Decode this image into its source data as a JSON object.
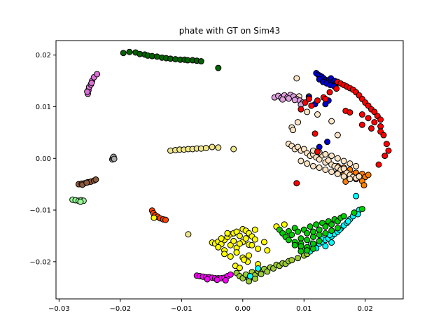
{
  "chart_data": {
    "type": "scatter",
    "title": "phate with GT on Sim43",
    "xlabel": "",
    "ylabel": "",
    "xlim": [
      -0.0305,
      0.0262
    ],
    "ylim": [
      -0.0272,
      0.0228
    ],
    "xticks": [
      -0.03,
      -0.02,
      -0.01,
      0.0,
      0.01,
      0.02
    ],
    "xtick_labels": [
      "−0.03",
      "−0.02",
      "−0.01",
      "0.00",
      "0.01",
      "0.02"
    ],
    "yticks": [
      -0.02,
      -0.01,
      0.0,
      0.01,
      0.02
    ],
    "ytick_labels": [
      "−0.02",
      "−0.01",
      "0.00",
      "0.01",
      "0.02"
    ],
    "grid": false,
    "legend": "none",
    "marker_edge_color": "#000000",
    "series": [
      {
        "color": "#006400",
        "x": [
          -0.0195,
          -0.0185,
          -0.0175,
          -0.0168,
          -0.016,
          -0.0155,
          -0.0148,
          -0.014,
          -0.0132,
          -0.0125,
          -0.0118,
          -0.011,
          -0.0102,
          -0.0095,
          -0.009,
          -0.0082,
          -0.0075,
          -0.0068,
          -0.004
        ],
        "y": [
          0.0204,
          0.0206,
          0.0205,
          0.0202,
          0.0201,
          0.0199,
          0.0198,
          0.0197,
          0.0195,
          0.0194,
          0.0193,
          0.0192,
          0.0191,
          0.0191,
          0.019,
          0.019,
          0.0189,
          0.0188,
          0.0175
        ]
      },
      {
        "color": "#DA70D6",
        "x": [
          -0.0253,
          -0.0252,
          -0.0251,
          -0.0248,
          -0.0246,
          -0.0243,
          -0.0238,
          -0.0254,
          -0.0247
        ],
        "y": [
          0.0125,
          0.0132,
          0.0138,
          0.0143,
          0.015,
          0.0157,
          0.0163,
          0.0129,
          0.0146
        ]
      },
      {
        "color": "#A9A9A9",
        "x": [
          -0.0213,
          -0.0212,
          -0.0211,
          -0.021
        ],
        "y": [
          -0.0002,
          0.0001,
          0.0003,
          -0.0001
        ]
      },
      {
        "color": "#8B5A3C",
        "x": [
          -0.0268,
          -0.0263,
          -0.0258,
          -0.0253,
          -0.0248,
          -0.0243,
          -0.024,
          -0.0262,
          -0.0255
        ],
        "y": [
          -0.005,
          -0.0049,
          -0.0048,
          -0.0046,
          -0.0045,
          -0.0043,
          -0.0041,
          -0.0051,
          -0.0047
        ]
      },
      {
        "color": "#98FB98",
        "x": [
          -0.0278,
          -0.0273,
          -0.0268,
          -0.0264,
          -0.026,
          -0.0265
        ],
        "y": [
          -0.008,
          -0.0081,
          -0.0082,
          -0.0081,
          -0.0082,
          -0.0084
        ]
      },
      {
        "color": "#FF4500",
        "x": [
          -0.0148,
          -0.0146,
          -0.0143,
          -0.0139,
          -0.0135,
          -0.013,
          -0.0126
        ],
        "y": [
          -0.0101,
          -0.0106,
          -0.011,
          -0.0113,
          -0.0116,
          -0.0118,
          -0.0119
        ]
      },
      {
        "color": "#F0E68C",
        "x": [
          -0.0118,
          -0.011,
          -0.0103,
          -0.0096,
          -0.0089,
          -0.0082,
          -0.0075,
          -0.0068,
          -0.006,
          -0.005,
          -0.004,
          -0.0015,
          -0.0089
        ],
        "y": [
          0.0015,
          0.0016,
          0.0017,
          0.0017,
          0.0018,
          0.0018,
          0.0019,
          0.0019,
          0.002,
          0.0022,
          0.0021,
          0.0018,
          -0.0147
        ]
      },
      {
        "color": "#FFFF00",
        "x": [
          -0.005,
          -0.0045,
          -0.004,
          -0.0035,
          -0.003,
          -0.0025,
          -0.002,
          -0.0015,
          -0.001,
          -0.0005,
          0.0,
          0.0005,
          0.001,
          0.0015,
          0.002,
          -0.004,
          -0.003,
          -0.002,
          -0.001,
          0.0,
          0.001,
          0.002,
          -0.0035,
          -0.0025,
          -0.0015,
          -0.0005,
          0.0005,
          0.0015,
          0.0025,
          0.0035,
          -0.003,
          -0.002,
          -0.001,
          0.0,
          0.001,
          -0.0145,
          0.0008,
          0.0025,
          0.0055,
          0.0068,
          -0.0012,
          0.0002,
          0.004,
          -0.0005
        ],
        "y": [
          -0.0163,
          -0.0165,
          -0.0161,
          -0.0166,
          -0.0158,
          -0.0152,
          -0.0147,
          -0.0145,
          -0.0142,
          -0.015,
          -0.0137,
          -0.014,
          -0.0145,
          -0.0151,
          -0.0138,
          -0.0172,
          -0.0178,
          -0.0168,
          -0.0173,
          -0.0162,
          -0.0167,
          -0.0157,
          -0.0155,
          -0.0145,
          -0.016,
          -0.0165,
          -0.0155,
          -0.0168,
          -0.0175,
          -0.0162,
          -0.0185,
          -0.019,
          -0.0182,
          -0.0192,
          -0.0188,
          -0.0115,
          -0.02,
          -0.0205,
          -0.0132,
          -0.0128,
          -0.0208,
          -0.0196,
          -0.0178,
          -0.0212
        ]
      },
      {
        "color": "#FF00FF",
        "x": [
          -0.0075,
          -0.007,
          -0.0065,
          -0.006,
          -0.0055,
          -0.005,
          -0.0045,
          -0.004,
          -0.0035,
          -0.003,
          -0.0025,
          -0.002,
          -0.0058,
          -0.0042,
          -0.0028
        ],
        "y": [
          -0.0227,
          -0.0228,
          -0.0229,
          -0.023,
          -0.023,
          -0.0231,
          -0.0232,
          -0.0232,
          -0.0232,
          -0.0231,
          -0.0228,
          -0.0225,
          -0.0234,
          -0.0235,
          -0.0236
        ]
      },
      {
        "color": "#9ACD32",
        "x": [
          -0.001,
          -0.0005,
          0.0,
          0.0005,
          0.001,
          0.0015,
          0.002,
          0.0025,
          0.003,
          0.0035,
          0.004,
          0.0045,
          0.005,
          0.0055,
          0.006,
          0.0065,
          0.007,
          0.0075,
          0.008,
          0.009,
          0.01,
          0.0105,
          0.001,
          0.002
        ],
        "y": [
          -0.0222,
          -0.0228,
          -0.0232,
          -0.0225,
          -0.0235,
          -0.022,
          -0.0226,
          -0.0218,
          -0.0224,
          -0.0214,
          -0.0219,
          -0.0211,
          -0.0213,
          -0.0206,
          -0.0208,
          -0.0203,
          -0.0204,
          -0.0199,
          -0.0197,
          -0.0193,
          -0.0188,
          -0.0185,
          -0.0238,
          -0.0233
        ]
      },
      {
        "color": "#00FFFF",
        "x": [
          0.0095,
          0.01,
          0.0105,
          0.011,
          0.0115,
          0.012,
          0.0125,
          0.013,
          0.0135,
          0.014,
          0.0145,
          0.015,
          0.0155,
          0.016,
          0.0165,
          0.017,
          0.0175,
          0.018,
          0.0185,
          0.019,
          0.0112,
          0.0128,
          0.0142,
          0.0158,
          0.0172,
          0.0188,
          0.0145,
          0.0135,
          0.0025,
          0.0012,
          0.0185
        ],
        "y": [
          -0.0172,
          -0.0178,
          -0.0175,
          -0.018,
          -0.0168,
          -0.0174,
          -0.0165,
          -0.0162,
          -0.0158,
          -0.0155,
          -0.0151,
          -0.0146,
          -0.0142,
          -0.0136,
          -0.013,
          -0.0125,
          -0.0118,
          -0.0112,
          -0.0106,
          -0.01,
          -0.0165,
          -0.0155,
          -0.0148,
          -0.0138,
          -0.0122,
          -0.0108,
          -0.0163,
          -0.017,
          -0.0213,
          -0.0228,
          -0.0073
        ]
      },
      {
        "color": "#00CC00",
        "x": [
          0.006,
          0.0065,
          0.007,
          0.0075,
          0.008,
          0.0085,
          0.009,
          0.0095,
          0.01,
          0.0105,
          0.011,
          0.0115,
          0.012,
          0.0125,
          0.013,
          0.0135,
          0.014,
          0.0145,
          0.015,
          0.0155,
          0.016,
          0.0075,
          0.0085,
          0.0095,
          0.0105,
          0.0115,
          0.0125,
          0.0135,
          0.0145,
          0.0155,
          0.0085,
          0.0095,
          0.0105,
          0.0115,
          0.0125,
          0.0095,
          0.0105,
          0.0115,
          0.0165,
          0.0182,
          0.0195
        ],
        "y": [
          -0.0138,
          -0.0145,
          -0.0152,
          -0.0141,
          -0.0148,
          -0.0135,
          -0.0142,
          -0.0155,
          -0.0138,
          -0.0145,
          -0.0132,
          -0.0142,
          -0.0128,
          -0.0138,
          -0.0125,
          -0.0132,
          -0.0122,
          -0.0128,
          -0.0118,
          -0.0122,
          -0.0115,
          -0.0158,
          -0.0162,
          -0.0165,
          -0.0158,
          -0.0152,
          -0.0148,
          -0.0145,
          -0.014,
          -0.0135,
          -0.0168,
          -0.017,
          -0.0172,
          -0.0165,
          -0.016,
          -0.018,
          -0.0178,
          -0.0175,
          -0.0112,
          -0.0105,
          -0.0098
        ]
      },
      {
        "color": "#FF7F00",
        "x": [
          0.0155,
          0.016,
          0.0165,
          0.017,
          0.0175,
          0.018,
          0.0185,
          0.019,
          0.0195,
          0.02,
          0.0205,
          0.0165,
          0.0175,
          0.0185,
          0.0195,
          0.0155,
          0.0168,
          0.0198
        ],
        "y": [
          -0.0015,
          -0.002,
          -0.0018,
          -0.0025,
          -0.0022,
          -0.003,
          -0.0028,
          -0.0034,
          -0.003,
          -0.0036,
          -0.0032,
          -0.0032,
          -0.0038,
          -0.004,
          -0.0044,
          -0.0028,
          -0.0045,
          -0.0052
        ]
      },
      {
        "color": "#FFE4C4",
        "x": [
          0.0075,
          0.008,
          0.0085,
          0.009,
          0.0095,
          0.01,
          0.0105,
          0.011,
          0.0115,
          0.012,
          0.0125,
          0.013,
          0.0135,
          0.014,
          0.0145,
          0.015,
          0.0155,
          0.016,
          0.0165,
          0.017,
          0.0175,
          0.018,
          0.0185,
          0.019,
          0.0095,
          0.0105,
          0.0115,
          0.0125,
          0.0135,
          0.0145,
          0.0155,
          0.0165,
          0.0175,
          0.0115,
          0.0125,
          0.0135,
          0.0145,
          0.0155,
          0.0165,
          0.0175,
          0.0185,
          0.008,
          0.009,
          0.0082,
          0.0105,
          0.0092,
          0.0088,
          0.0108,
          0.0122,
          0.0145,
          0.0155
        ],
        "y": [
          0.0028,
          0.0024,
          0.0018,
          0.0022,
          0.0015,
          0.0018,
          0.001,
          0.0005,
          0.0008,
          0.0002,
          -0.0002,
          0.0006,
          -0.0008,
          -0.0004,
          -0.0012,
          -0.0015,
          -0.0018,
          -0.0022,
          -0.002,
          -0.0028,
          -0.0032,
          -0.0036,
          -0.0038,
          -0.0035,
          -0.0005,
          -0.001,
          -0.0015,
          -0.0018,
          -0.0022,
          -0.0026,
          -0.003,
          -0.0035,
          -0.004,
          0.0015,
          0.0012,
          0.0008,
          0.0005,
          0.0,
          -0.0005,
          -0.001,
          -0.0015,
          0.006,
          0.007,
          0.0055,
          0.009,
          0.012,
          0.0155,
          0.012,
          0.0085,
          0.0072,
          0.0045
        ]
      },
      {
        "color": "#DDA0DD",
        "x": [
          0.0052,
          0.0058,
          0.0063,
          0.0068,
          0.0073,
          0.0078,
          0.0083,
          0.0088,
          0.0093,
          0.0098,
          0.0065,
          0.0075,
          0.0085,
          0.0095
        ],
        "y": [
          0.0118,
          0.0121,
          0.0117,
          0.0122,
          0.0118,
          0.0123,
          0.012,
          0.0115,
          0.0112,
          0.0108,
          0.0114,
          0.0116,
          0.0113,
          0.0104
        ]
      },
      {
        "color": "#0000CD",
        "x": [
          0.012,
          0.0123,
          0.0126,
          0.0129,
          0.0132,
          0.0135,
          0.0138,
          0.0141,
          0.0144,
          0.0147,
          0.015,
          0.0153,
          0.0125,
          0.0131,
          0.0137,
          0.0143,
          0.0149,
          0.0108,
          0.0118,
          0.014,
          0.0135,
          0.0138,
          0.0125
        ],
        "y": [
          0.0165,
          0.0162,
          0.016,
          0.0158,
          0.0155,
          0.0152,
          0.015,
          0.0152,
          0.0155,
          0.0148,
          0.015,
          0.0145,
          0.0153,
          0.0148,
          0.0145,
          0.0142,
          0.014,
          0.0118,
          0.0105,
          0.0112,
          0.0105,
          0.0032,
          0.0022
        ]
      },
      {
        "color": "#FF0000",
        "x": [
          0.0155,
          0.016,
          0.0165,
          0.017,
          0.0175,
          0.018,
          0.0185,
          0.019,
          0.0195,
          0.02,
          0.0205,
          0.021,
          0.0215,
          0.022,
          0.0225,
          0.0195,
          0.0205,
          0.0215,
          0.0225,
          0.0195,
          0.021,
          0.0225,
          0.023,
          0.0235,
          0.0232,
          0.0238,
          0.0222,
          0.0095,
          0.0102,
          0.0112,
          0.0122,
          0.0132,
          0.0142,
          0.0153,
          0.0135,
          0.0108,
          0.0168,
          0.0175,
          0.0118,
          0.0122,
          0.0088
        ],
        "y": [
          0.0148,
          0.0145,
          0.0142,
          0.0139,
          0.0136,
          0.0133,
          0.0128,
          0.0122,
          0.0115,
          0.0108,
          0.0102,
          0.0095,
          0.009,
          0.0082,
          0.0075,
          0.0085,
          0.0078,
          0.007,
          0.0062,
          0.0065,
          0.0058,
          0.0052,
          0.0045,
          0.0028,
          0.0005,
          0.0015,
          -0.0012,
          0.0095,
          0.0108,
          0.0102,
          0.0112,
          0.0118,
          0.0128,
          0.0135,
          0.0115,
          0.0115,
          0.0092,
          0.0089,
          0.0048,
          0.0013,
          -0.0048
        ]
      }
    ]
  }
}
